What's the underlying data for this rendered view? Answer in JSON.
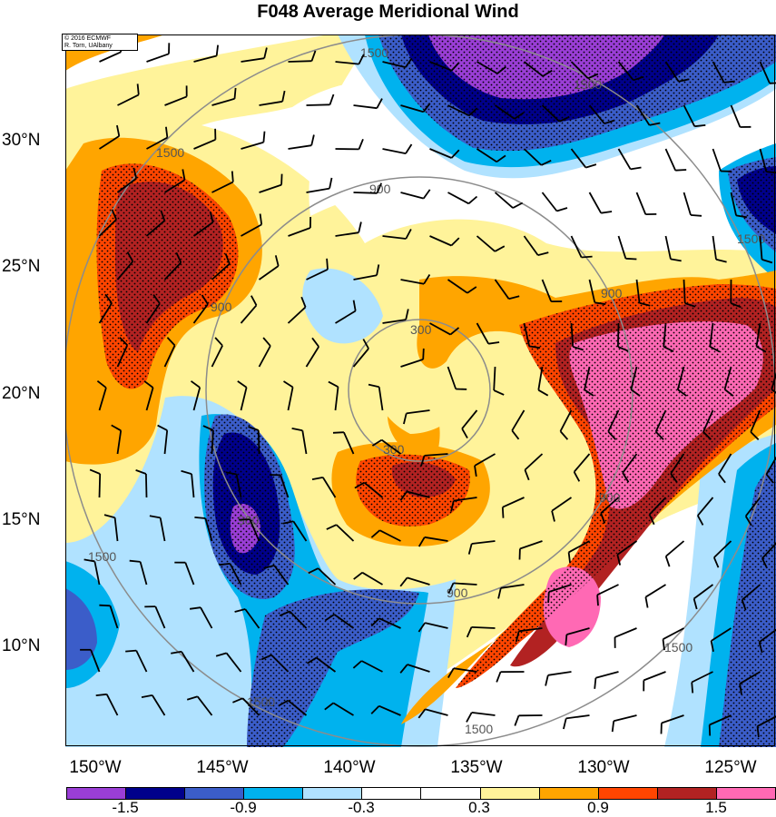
{
  "title": "F048 Average Meridional Wind",
  "credit": {
    "line1": "© 2016 ECMWF",
    "line2": "R. Torn, UAlbany"
  },
  "lat_labels": [
    "30°N",
    "25°N",
    "20°N",
    "15°N",
    "10°N"
  ],
  "lon_labels": [
    "150°W",
    "145°W",
    "140°W",
    "135°W",
    "130°W",
    "125°W"
  ],
  "contour_labels": [
    "300",
    "900",
    "1500"
  ],
  "colorbar": {
    "colors": [
      "#9a3ed6",
      "#00008b",
      "#3b5dc9",
      "#00b2ee",
      "#b0e2ff",
      "#ffffff",
      "#ffffff",
      "#fff39a",
      "#ffa500",
      "#ff4500",
      "#b22222",
      "#ff69b4"
    ],
    "labels": [
      "-1.5",
      "-0.9",
      "-0.3",
      "0.3",
      "0.9",
      "1.5"
    ]
  },
  "colors": {
    "purple": "#9a3ed6",
    "navy": "#00008b",
    "royal": "#3b5dc9",
    "sky": "#00b2ee",
    "pale_blue": "#b0e2ff",
    "pale_yellow": "#fff39a",
    "orange": "#ffa500",
    "red_orange": "#ff4500",
    "firebrick": "#b22222",
    "pink": "#ff69b4",
    "range_ring": "#8c8c8c"
  }
}
